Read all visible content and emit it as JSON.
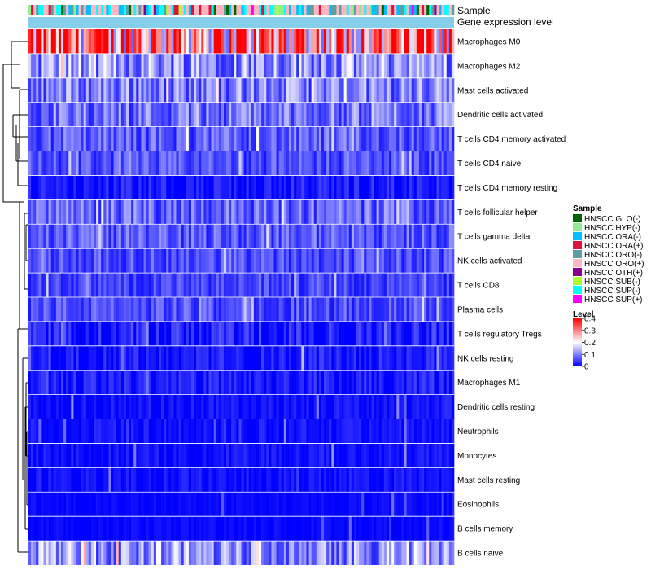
{
  "chart_data": {
    "type": "heatmap",
    "annotation_rows": [
      "Sample",
      "Gene expression level"
    ],
    "row_labels": [
      "Macrophages M0",
      "Macrophages M2",
      "Mast cells activated",
      "Dendritic cells activated",
      "T cells CD4 memory activated",
      "T cells CD4 naive",
      "T cells CD4 memory resting",
      "T cells follicular helper",
      "T cells gamma delta",
      "NK cells activated",
      "T cells CD8",
      "Plasma cells",
      "T cells regulatory  Tregs",
      "NK cells resting",
      "Macrophages M1",
      "Dendritic cells resting",
      "Neutrophils",
      "Monocytes",
      "Mast cells resting",
      "Eosinophils",
      "B cells memory",
      "B cells naive"
    ],
    "row_mean_levels": [
      0.3,
      0.12,
      0.1,
      0.09,
      0.07,
      0.06,
      0.03,
      0.08,
      0.07,
      0.06,
      0.05,
      0.06,
      0.04,
      0.03,
      0.03,
      0.02,
      0.02,
      0.02,
      0.02,
      0.01,
      0.01,
      0.12
    ],
    "n_samples": 170,
    "sample_legend": {
      "title": "Sample",
      "entries": [
        {
          "label": "HNSCC GLO(-)",
          "color": "#006400"
        },
        {
          "label": "HNSCC HYP(-)",
          "color": "#90EE90"
        },
        {
          "label": "HNSCC ORA(-)",
          "color": "#00BFFF"
        },
        {
          "label": "HNSCC ORA(+)",
          "color": "#DC143C"
        },
        {
          "label": "HNSCC ORO(-)",
          "color": "#5F9EA0"
        },
        {
          "label": "HNSCC ORO(+)",
          "color": "#FFB6C1"
        },
        {
          "label": "HNSCC OTH(+)",
          "color": "#8B008B"
        },
        {
          "label": "HNSCC SUB(-)",
          "color": "#ADFF2F"
        },
        {
          "label": "HNSCC SUP(-)",
          "color": "#00FFFF"
        },
        {
          "label": "HNSCC SUP(+)",
          "color": "#FF00FF"
        }
      ]
    },
    "level_legend": {
      "title": "Level",
      "ticks": [
        "0.4",
        "0.3",
        "0.2",
        "0.1",
        "0"
      ],
      "tick_values": [
        0.4,
        0.3,
        0.2,
        0.1,
        0
      ],
      "range": [
        0,
        0.4
      ],
      "colors": [
        "#0000FF",
        "#FFFFFF",
        "#FF0000"
      ]
    },
    "gene_expression_level_color": "#87CEEB"
  }
}
